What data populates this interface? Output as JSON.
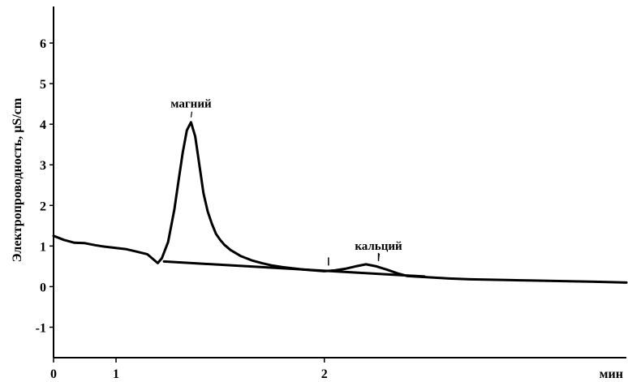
{
  "chart_data": {
    "type": "line",
    "title": "",
    "xlabel": "мин",
    "ylabel": "Электропроводность, µS/cm",
    "xlim": [
      0,
      2.75
    ],
    "ylim": [
      -1.75,
      6.9
    ],
    "x_ticks": [
      {
        "value": 0,
        "label": "0"
      },
      {
        "value": 0.3,
        "label": "1"
      },
      {
        "value": 1.3,
        "label": "2"
      }
    ],
    "y_ticks": [
      {
        "value": -1,
        "label": "-1"
      },
      {
        "value": 0,
        "label": "0"
      },
      {
        "value": 1,
        "label": "1"
      },
      {
        "value": 2,
        "label": "2"
      },
      {
        "value": 3,
        "label": "3"
      },
      {
        "value": 4,
        "label": "4"
      },
      {
        "value": 5,
        "label": "5"
      },
      {
        "value": 6,
        "label": "6"
      }
    ],
    "grid": false,
    "series": [
      {
        "color": "#000000",
        "x": [
          0,
          0.05,
          0.1,
          0.15,
          0.2,
          0.25,
          0.3,
          0.35,
          0.4,
          0.45,
          0.5,
          0.52,
          0.55,
          0.58,
          0.6,
          0.62,
          0.64,
          0.66,
          0.68,
          0.7,
          0.72,
          0.74,
          0.76,
          0.78,
          0.8,
          0.82,
          0.85,
          0.9,
          0.95,
          1.0,
          1.05,
          1.1,
          1.15,
          1.2,
          1.25,
          1.3,
          1.35,
          1.4,
          1.45,
          1.5,
          1.55,
          1.6,
          1.65,
          1.7,
          1.8,
          1.9,
          2.0,
          2.1,
          2.2,
          2.3,
          2.4,
          2.5,
          2.6,
          2.75
        ],
        "y": [
          1.25,
          1.15,
          1.08,
          1.07,
          1.02,
          0.98,
          0.95,
          0.92,
          0.86,
          0.8,
          0.58,
          0.7,
          1.1,
          1.9,
          2.6,
          3.3,
          3.85,
          4.05,
          3.7,
          3.0,
          2.3,
          1.85,
          1.55,
          1.3,
          1.15,
          1.03,
          0.9,
          0.75,
          0.65,
          0.58,
          0.52,
          0.48,
          0.45,
          0.42,
          0.4,
          0.38,
          0.4,
          0.44,
          0.5,
          0.55,
          0.5,
          0.42,
          0.33,
          0.26,
          0.23,
          0.2,
          0.18,
          0.17,
          0.16,
          0.15,
          0.14,
          0.13,
          0.12,
          0.1
        ]
      },
      {
        "color": "#000000",
        "x": [
          0.53,
          1.78
        ],
        "y": [
          0.62,
          0.25
        ]
      }
    ],
    "annotations": [
      {
        "text": "магний",
        "x": 0.66,
        "y": 4.05
      },
      {
        "text": "кальций",
        "x": 1.56,
        "y": 0.55
      }
    ],
    "markers": [
      {
        "x": 1.32,
        "y": 0.44
      },
      {
        "x": 1.56,
        "y": 0.55
      }
    ]
  }
}
